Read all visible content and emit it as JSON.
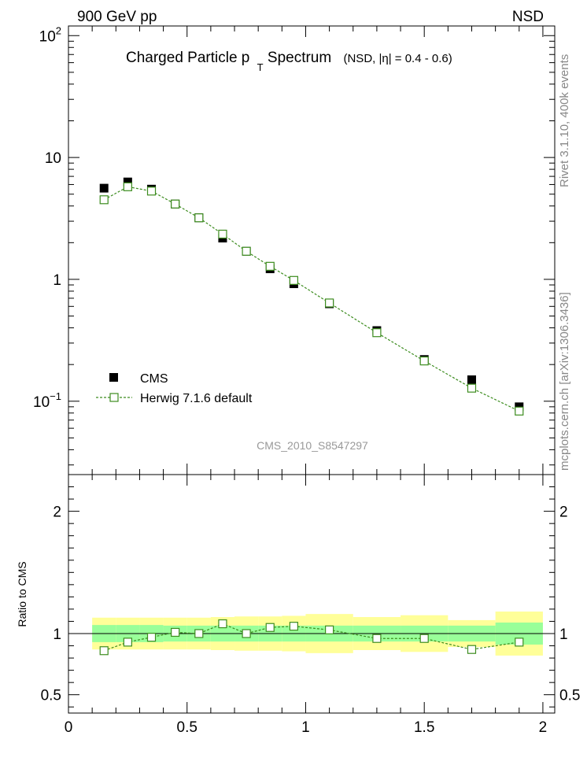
{
  "header": {
    "left_label": "900 GeV pp",
    "right_label": "NSD"
  },
  "side_text": {
    "version": "Rivet 3.1.10,  400k events",
    "source": "mcplots.cern.ch [arXiv:1306.3436]"
  },
  "watermark": "CMS_2010_S8547297",
  "chart_data": [
    {
      "type": "scatter",
      "title_main": "Charged Particle p",
      "title_sub": "T",
      "title_rest": " Spectrum",
      "title_note": "(NSD, |η| = 0.4 - 0.6)",
      "yscale": "log",
      "ylim": [
        0.025,
        120
      ],
      "xlim": [
        0,
        2.05
      ],
      "y_tick_labels": [
        {
          "v": 100,
          "base": "10",
          "exp": "2"
        },
        {
          "v": 10,
          "base": "10",
          "exp": ""
        },
        {
          "v": 1,
          "base": "1",
          "exp": ""
        },
        {
          "v": 0.1,
          "base": "10",
          "exp": "−1"
        }
      ],
      "legend": {
        "placement": "lower-left",
        "entries": [
          {
            "label": "CMS",
            "marker": "filled-square",
            "color": "#000000"
          },
          {
            "label": "Herwig 7.1.6 default",
            "marker": "open-square-dashed",
            "color": "#3c8c1e"
          }
        ]
      },
      "series": [
        {
          "name": "CMS",
          "x": [
            0.15,
            0.25,
            0.35,
            0.45,
            0.55,
            0.65,
            0.75,
            0.85,
            0.95,
            1.1,
            1.3,
            1.5,
            1.7,
            1.9
          ],
          "y": [
            5.6,
            6.3,
            5.5,
            4.15,
            3.2,
            2.18,
            1.7,
            1.22,
            0.92,
            0.63,
            0.38,
            0.22,
            0.15,
            0.09
          ]
        },
        {
          "name": "Herwig 7.1.6 default",
          "x": [
            0.15,
            0.25,
            0.35,
            0.45,
            0.55,
            0.65,
            0.75,
            0.85,
            0.95,
            1.1,
            1.3,
            1.5,
            1.7,
            1.9
          ],
          "y": [
            4.5,
            5.75,
            5.3,
            4.15,
            3.2,
            2.35,
            1.7,
            1.28,
            0.98,
            0.64,
            0.365,
            0.214,
            0.128,
            0.083
          ]
        }
      ]
    },
    {
      "type": "scatter",
      "ylabel": "Ratio to CMS",
      "ylim": [
        0.35,
        2.3
      ],
      "xlim": [
        0,
        2.05
      ],
      "y_ticks": [
        0.5,
        1,
        2
      ],
      "y_tick_labels": [
        "0.5",
        "1",
        "2"
      ],
      "x_ticks": [
        0,
        0.5,
        1,
        1.5,
        2
      ],
      "x_tick_labels": [
        "0",
        "0.5",
        "1",
        "1.5",
        "2"
      ],
      "bands": {
        "x_edges": [
          0.1,
          0.2,
          0.3,
          0.4,
          0.5,
          0.6,
          0.7,
          0.8,
          0.9,
          1.0,
          1.2,
          1.4,
          1.6,
          1.8,
          2.0
        ],
        "stat_lo": [
          0.93,
          0.93,
          0.93,
          0.935,
          0.935,
          0.935,
          0.935,
          0.935,
          0.935,
          0.935,
          0.935,
          0.935,
          0.935,
          0.91
        ],
        "stat_hi": [
          1.07,
          1.07,
          1.07,
          1.065,
          1.065,
          1.065,
          1.065,
          1.065,
          1.065,
          1.065,
          1.065,
          1.065,
          1.065,
          1.09
        ],
        "total_lo": [
          0.87,
          0.87,
          0.87,
          0.87,
          0.87,
          0.865,
          0.86,
          0.86,
          0.855,
          0.84,
          0.865,
          0.85,
          0.89,
          0.82
        ],
        "total_hi": [
          1.13,
          1.13,
          1.13,
          1.13,
          1.13,
          1.135,
          1.14,
          1.14,
          1.145,
          1.16,
          1.135,
          1.15,
          1.11,
          1.18
        ]
      },
      "series": [
        {
          "name": "Herwig 7.1.6 default",
          "x": [
            0.15,
            0.25,
            0.35,
            0.45,
            0.55,
            0.65,
            0.75,
            0.85,
            0.95,
            1.1,
            1.3,
            1.5,
            1.7,
            1.9
          ],
          "y": [
            0.86,
            0.93,
            0.97,
            1.01,
            1.0,
            1.08,
            1.0,
            1.05,
            1.06,
            1.03,
            0.96,
            0.96,
            0.87,
            0.93
          ]
        }
      ]
    }
  ]
}
